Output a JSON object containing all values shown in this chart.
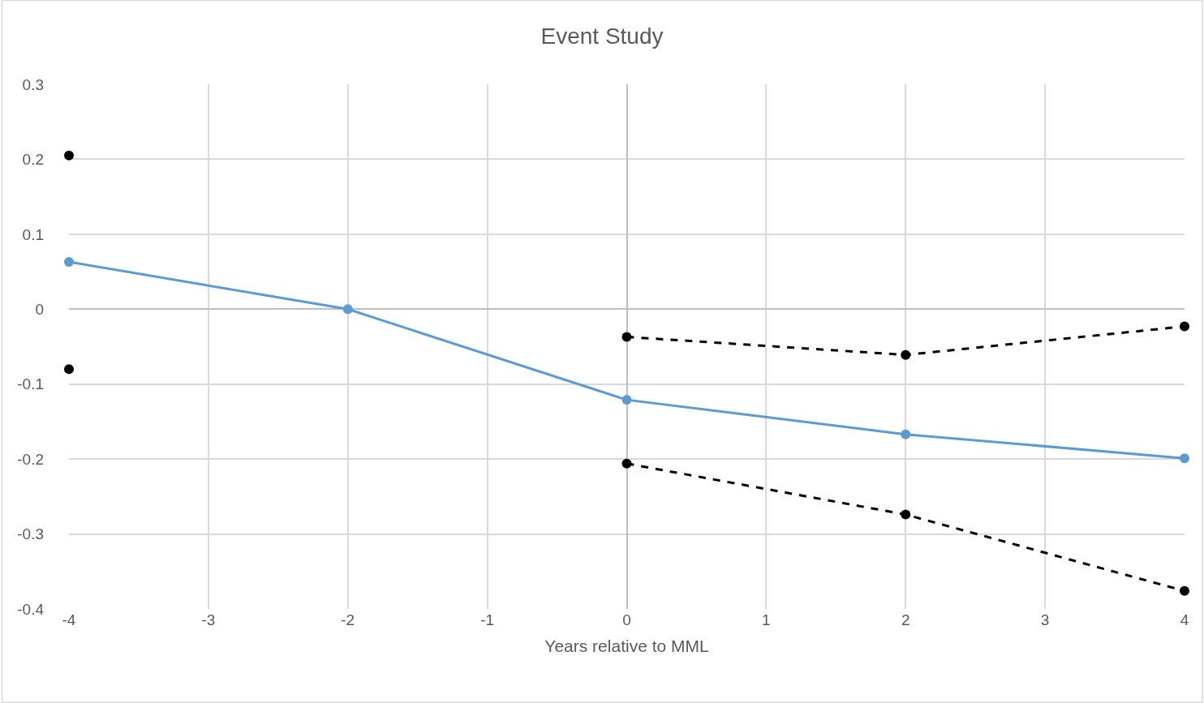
{
  "chart_data": {
    "type": "line",
    "title": "Event Study",
    "xlabel": "Years relative to MML",
    "x": [
      -4,
      -2,
      0,
      2,
      4
    ],
    "series": [
      {
        "color": "#5b9bd5",
        "values": [
          0.063,
          0.0,
          -0.121,
          -0.167,
          -0.199
        ],
        "line_style": "solid"
      },
      {
        "color": "#000000",
        "values": [
          0.205,
          null,
          -0.037,
          -0.061,
          -0.023
        ],
        "line_style": "dashed"
      },
      {
        "color": "#000000",
        "values": [
          -0.08,
          null,
          -0.206,
          -0.274,
          -0.376
        ],
        "line_style": "dashed"
      }
    ],
    "xlim": [
      -4,
      4
    ],
    "xticks": [
      -4,
      -3,
      -2,
      -1,
      0,
      1,
      2,
      3,
      4
    ],
    "ylim": [
      -0.4,
      0.3
    ],
    "yticks": [
      -0.4,
      -0.3,
      -0.2,
      -0.1,
      0,
      0.1,
      0.2,
      0.3
    ],
    "grid": true,
    "marker": "circle"
  }
}
